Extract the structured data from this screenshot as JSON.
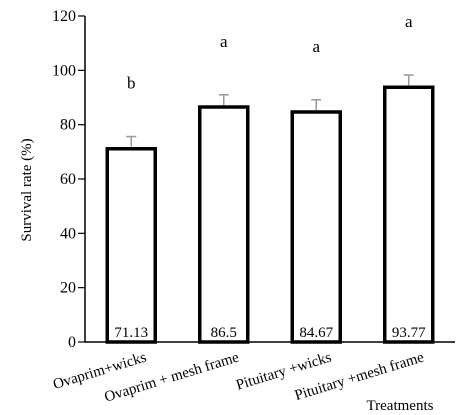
{
  "chart_data": {
    "type": "bar",
    "title": "",
    "ylabel": "Survival rate (%)",
    "xlabel": "Treatments",
    "ylim": [
      0,
      120
    ],
    "yticks": [
      0,
      20,
      40,
      60,
      80,
      100,
      120
    ],
    "categories": [
      "Ovaprim+wicks",
      "Ovaprim + mesh frame",
      "Pituitary +wicks",
      "Pituitary +mesh frame"
    ],
    "values": [
      71.13,
      86.5,
      84.67,
      93.77
    ],
    "value_labels": [
      "71.13",
      "86.5",
      "84.67",
      "93.77"
    ],
    "error_bars": [
      4.5,
      4.5,
      4.5,
      4.5
    ],
    "significance_letters": [
      "b",
      "a",
      "a",
      "a"
    ],
    "grid": false,
    "legend": "none",
    "colors": {
      "bar_fill": "#ffffff",
      "bar_stroke": "#000000",
      "error_bar": "#999999",
      "axis": "#000000"
    }
  }
}
